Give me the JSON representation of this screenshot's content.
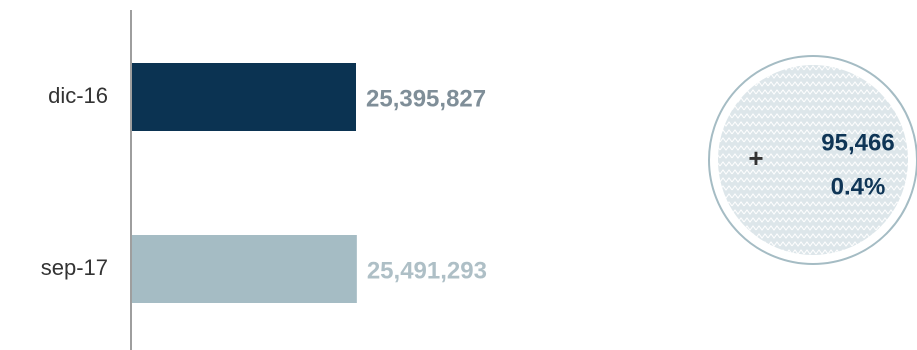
{
  "chart_data": {
    "type": "bar",
    "orientation": "horizontal",
    "categories": [
      "dic-16",
      "sep-17"
    ],
    "values": [
      25395827,
      25491293
    ],
    "value_labels": [
      "25,395,827",
      "25,491,293"
    ],
    "colors": [
      "#0b3352",
      "#a5bcc4"
    ],
    "label_colors": [
      "#7f8e98",
      "#aebfc6"
    ],
    "title": "",
    "xlabel": "",
    "ylabel": ""
  },
  "delta": {
    "sign": "+",
    "value": "95,466",
    "percent": "0.4%",
    "value_color": "#0f3556",
    "ring_color": "#a5bcc4",
    "fill_color": "#dde6ea"
  }
}
